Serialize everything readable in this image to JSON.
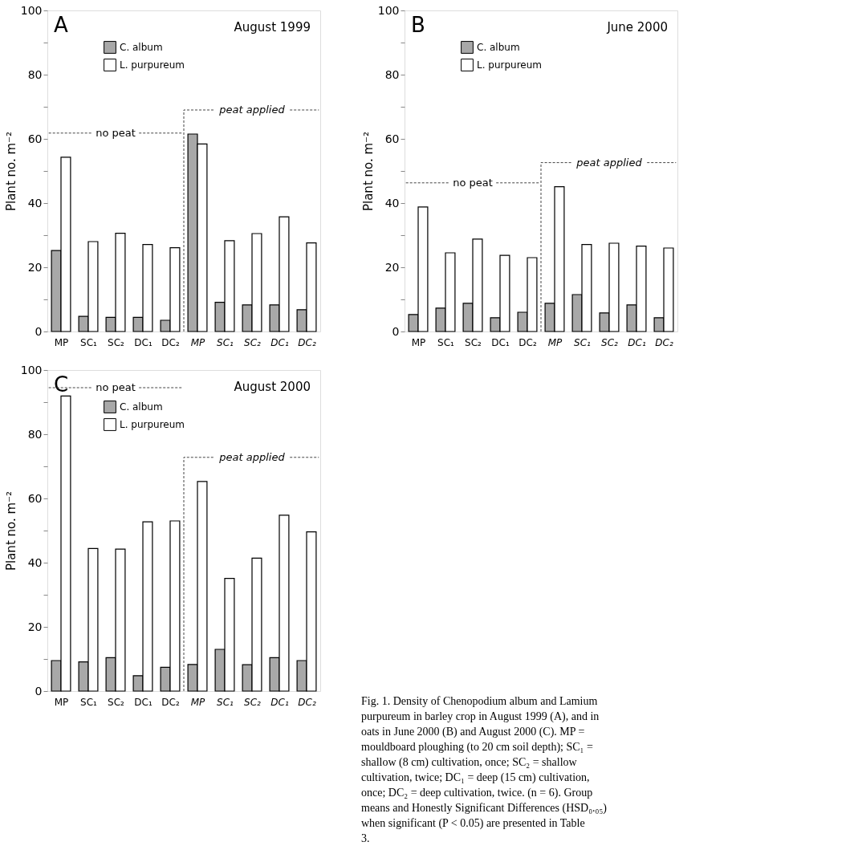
{
  "chart_data": [
    {
      "type": "bar",
      "title": "August 1999",
      "ylabel": "Plant no. m⁻²",
      "categories": [
        "MP",
        "SC₁",
        "SC₂",
        "DC₁",
        "DC₂",
        "MP",
        "SC₁",
        "SC₂",
        "DC₁",
        "DC₂"
      ],
      "series": [
        {
          "name": "C. album",
          "color": "#a8a8a8",
          "values": [
            25.2,
            4.7,
            4.4,
            4.4,
            3.5,
            61.5,
            9.1,
            8.3,
            8.3,
            6.8
          ]
        },
        {
          "name": "L. purpureum",
          "color": "#ffffff",
          "values": [
            54.3,
            28.0,
            30.6,
            27.1,
            26.1,
            58.4,
            28.3,
            30.5,
            35.7,
            27.6
          ]
        }
      ],
      "ylim": [
        0,
        100
      ],
      "yticks": [
        0,
        {
          "value": 10,
          "label": null
        },
        20,
        {
          "value": 30,
          "label": null
        },
        40,
        {
          "value": 50,
          "label": null
        },
        60,
        {
          "value": 70,
          "label": null
        },
        80,
        {
          "value": 90,
          "label": null
        },
        100
      ],
      "legend": "top left",
      "grid": false,
      "annotations": [
        "A",
        "no peat",
        "peat applied"
      ]
    },
    {
      "type": "bar",
      "title": "June 2000",
      "ylabel": "Plant no. m⁻²",
      "categories": [
        "MP",
        "SC₁",
        "SC₂",
        "DC₁",
        "DC₂",
        "MP",
        "SC₁",
        "SC₂",
        "DC₁",
        "DC₂"
      ],
      "series": [
        {
          "name": "C. album",
          "color": "#a8a8a8",
          "values": [
            5.3,
            7.3,
            8.8,
            4.3,
            6.0,
            8.8,
            11.5,
            5.8,
            8.3,
            4.3
          ]
        },
        {
          "name": "L. purpureum",
          "color": "#ffffff",
          "values": [
            38.8,
            24.5,
            28.8,
            23.7,
            23.0,
            45.1,
            27.1,
            27.5,
            26.6,
            26.0
          ]
        }
      ],
      "ylim": [
        0,
        100
      ],
      "yticks": [
        0,
        {
          "value": 10,
          "label": null
        },
        20,
        {
          "value": 30,
          "label": null
        },
        40,
        {
          "value": 50,
          "label": null
        },
        60,
        {
          "value": 70,
          "label": null
        },
        80,
        {
          "value": 90,
          "label": null
        },
        100
      ],
      "legend": "top left",
      "grid": false,
      "annotations": [
        "B",
        "no peat",
        "peat applied"
      ]
    },
    {
      "type": "bar",
      "title": "August 2000",
      "ylabel": "Plant no. m⁻²",
      "categories": [
        "MP",
        "SC₁",
        "SC₂",
        "DC₁",
        "DC₂",
        "MP",
        "SC₁",
        "SC₂",
        "DC₁",
        "DC₂"
      ],
      "series": [
        {
          "name": "C. album",
          "color": "#a8a8a8",
          "values": [
            9.5,
            9.1,
            10.4,
            4.8,
            7.4,
            8.3,
            13.0,
            8.2,
            10.4,
            9.5
          ]
        },
        {
          "name": "L. purpureum",
          "color": "#ffffff",
          "values": [
            91.9,
            44.4,
            44.2,
            52.7,
            53.0,
            65.3,
            35.1,
            41.4,
            54.8,
            49.6
          ]
        }
      ],
      "ylim": [
        0,
        100
      ],
      "yticks": [
        0,
        {
          "value": 10,
          "label": null
        },
        20,
        {
          "value": 30,
          "label": null
        },
        40,
        {
          "value": 50,
          "label": null
        },
        60,
        {
          "value": 70,
          "label": null
        },
        80,
        {
          "value": 90,
          "label": null
        },
        100
      ],
      "legend": "top left",
      "grid": false,
      "annotations": [
        "C",
        "no peat",
        "peat applied"
      ]
    },
    {
      "type": "other",
      "annotations": [
        "Fig. 1. Density of Chenopodium album and Lamium purpureum in barley crop in August 1999 (A), and in oats in June 2000 (B) and August 2000 (C). MP = mouldboard ploughing (to 20 cm soil depth); SC₁ = shallow (8 cm) cultivation, once; SC₂ = shallow cultivation, twice; DC₁ = deep (15 cm) cultivation, once; DC₂ = deep cultivation, twice. (n = 6). Group means and Honestly Significant Differences (HSD₀.₀₅) when significant (P < 0.05) are presented in Table 3."
      ]
    }
  ]
}
